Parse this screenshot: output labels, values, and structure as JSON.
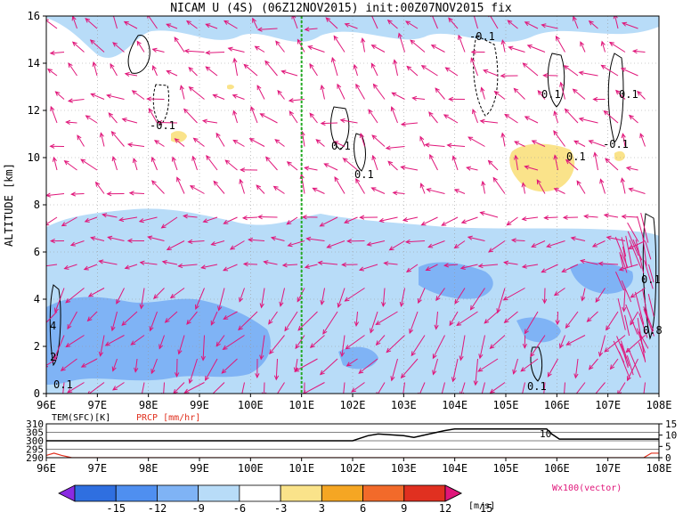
{
  "title": "NICAM U (4S) (06Z12NOV2015) init:00Z07NOV2015 fix",
  "chart_data": [
    {
      "type": "heatmap",
      "panel": "main",
      "xlabel": "",
      "ylabel": "ALTITUDE [km]",
      "x_ticks": [
        "96E",
        "97E",
        "98E",
        "99E",
        "100E",
        "101E",
        "102E",
        "103E",
        "104E",
        "105E",
        "106E",
        "107E",
        "108E"
      ],
      "x_range": [
        96,
        108
      ],
      "y_ticks": [
        "0",
        "2",
        "4",
        "6",
        "8",
        "10",
        "12",
        "14",
        "16"
      ],
      "y_range": [
        0,
        16
      ],
      "grid": true,
      "reference_line_x": 101,
      "reference_line_color": "#22aa22",
      "contour_labels": [
        "-0.1",
        "-0.1",
        "0.1",
        "0.1",
        "0.1",
        "-0.1",
        "0.1",
        "0.1",
        "-0.1",
        "-0.1",
        "0.1",
        "0.1",
        "4",
        "2",
        "0.1",
        "0.8"
      ],
      "colorbar_ticks": [
        "-15",
        "-12",
        "-9",
        "-6",
        "-3",
        "3",
        "6",
        "9",
        "12",
        "15"
      ],
      "colorbar_colors": [
        "#8a2be2",
        "#2f6fe0",
        "#4f8ff0",
        "#7fb3f5",
        "#b8dcf8",
        "#ffffff",
        "#fae38a",
        "#f5a623",
        "#f26a2a",
        "#e03020",
        "#a50f15"
      ],
      "colorbar_unit": "[m/s]",
      "vector_legend": "Wx100(vector)",
      "vector_color": "#e0167a"
    },
    {
      "type": "line",
      "panel": "surface",
      "series": [
        {
          "name": "TEM(SFC)[K]",
          "color": "#000000",
          "x": [
            96,
            97,
            98,
            99,
            100,
            101,
            102,
            102.1,
            102.3,
            102.5,
            103,
            103.2,
            103.5,
            103.8,
            104,
            104.2,
            105,
            105.8,
            105.9,
            106.05,
            106.3,
            107,
            108
          ],
          "values": [
            300,
            300,
            300,
            300,
            300,
            300,
            300,
            301,
            303,
            304,
            303,
            302,
            304,
            306,
            307,
            307,
            307,
            307,
            304,
            301,
            301,
            301,
            301
          ]
        },
        {
          "name": "PRCP [mm/hr]",
          "color": "#e0301e",
          "x": [
            96,
            96.15,
            96.3,
            96.5,
            97,
            100,
            104,
            107,
            107.7,
            107.85,
            108
          ],
          "values": [
            1,
            2,
            1,
            0,
            0,
            0,
            0,
            0,
            0,
            2,
            2
          ]
        }
      ],
      "x_ticks": [
        "96E",
        "97E",
        "98E",
        "99E",
        "100E",
        "101E",
        "102E",
        "103E",
        "104E",
        "105E",
        "106E",
        "107E",
        "108E"
      ],
      "y_left_ticks": [
        "290",
        "295",
        "300",
        "305",
        "310"
      ],
      "y_left_range": [
        290,
        310
      ],
      "y_right_ticks": [
        "0",
        "5",
        "10",
        "15"
      ],
      "y_right_range": [
        0,
        15
      ],
      "annotation": "10"
    }
  ]
}
